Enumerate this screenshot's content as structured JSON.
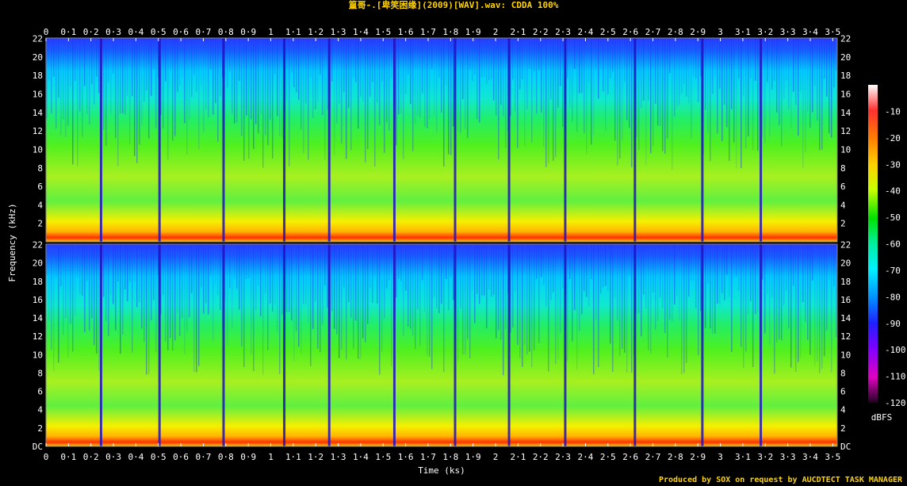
{
  "title": "篁哥-.[卑笑困缘](2009)[WAV].wav: CDDA 100%",
  "footer": "Produced by SOX on request by AUCDTECT TASK MANAGER",
  "chart_data": {
    "type": "heatmap",
    "title": "篁哥-.[卑笑困缘](2009)[WAV].wav: CDDA 100%",
    "xlabel": "Time (ks)",
    "ylabel": "Frequency (kHz)",
    "xlim": [
      0,
      3.52
    ],
    "ylim": [
      0,
      22.05
    ],
    "channels": 2,
    "x_ticks": [
      "0",
      "0·1",
      "0·2",
      "0·3",
      "0·4",
      "0·5",
      "0·6",
      "0·7",
      "0·8",
      "0·9",
      "1",
      "1·1",
      "1·2",
      "1·3",
      "1·4",
      "1·5",
      "1·6",
      "1·7",
      "1·8",
      "1·9",
      "2",
      "2·1",
      "2·2",
      "2·3",
      "2·4",
      "2·5",
      "2·6",
      "2·7",
      "2·8",
      "2·9",
      "3",
      "3·1",
      "3·2",
      "3·3",
      "3·4",
      "3·5"
    ],
    "y_ticks": [
      "DC",
      "2",
      "4",
      "6",
      "8",
      "10",
      "12",
      "14",
      "16",
      "18",
      "20",
      "22"
    ],
    "colorbar": {
      "label": "dBFS",
      "ticks": [
        "-10",
        "-20",
        "-30",
        "-40",
        "-50",
        "-60",
        "-70",
        "-80",
        "-90",
        "-100",
        "-110",
        "-120"
      ],
      "range": [
        -120,
        0
      ]
    },
    "track_boundaries_ks": [
      0.245,
      0.505,
      0.79,
      1.06,
      1.26,
      1.55,
      1.82,
      2.06,
      2.31,
      2.62,
      2.92,
      3.18
    ]
  }
}
